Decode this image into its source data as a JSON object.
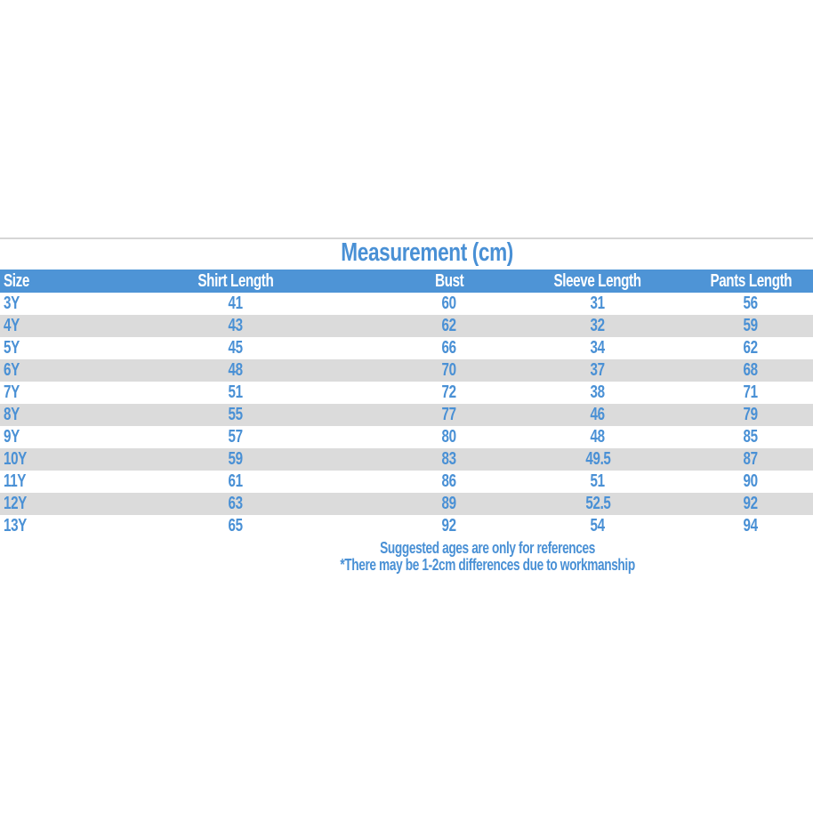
{
  "colors": {
    "header_bg": "#4e94d6",
    "accent_text": "#4990d5",
    "alt_row_bg": "#dbdbdb",
    "divider": "#d6d6d6",
    "header_text": "#ffffff"
  },
  "chart_data": {
    "type": "table",
    "title": "Measurement (cm)",
    "columns": [
      "Size",
      "Shirt Length",
      "Bust",
      "Sleeve Length",
      "Pants Length"
    ],
    "rows": [
      {
        "size": "3Y",
        "shirt_length": "41",
        "bust": "60",
        "sleeve_length": "31",
        "pants_length": "56"
      },
      {
        "size": "4Y",
        "shirt_length": "43",
        "bust": "62",
        "sleeve_length": "32",
        "pants_length": "59"
      },
      {
        "size": "5Y",
        "shirt_length": "45",
        "bust": "66",
        "sleeve_length": "34",
        "pants_length": "62"
      },
      {
        "size": "6Y",
        "shirt_length": "48",
        "bust": "70",
        "sleeve_length": "37",
        "pants_length": "68"
      },
      {
        "size": "7Y",
        "shirt_length": "51",
        "bust": "72",
        "sleeve_length": "38",
        "pants_length": "71"
      },
      {
        "size": "8Y",
        "shirt_length": "55",
        "bust": "77",
        "sleeve_length": "46",
        "pants_length": "79"
      },
      {
        "size": "9Y",
        "shirt_length": "57",
        "bust": "80",
        "sleeve_length": "48",
        "pants_length": "85"
      },
      {
        "size": "10Y",
        "shirt_length": "59",
        "bust": "83",
        "sleeve_length": "49.5",
        "pants_length": "87"
      },
      {
        "size": "11Y",
        "shirt_length": "61",
        "bust": "86",
        "sleeve_length": "51",
        "pants_length": "90"
      },
      {
        "size": "12Y",
        "shirt_length": "63",
        "bust": "89",
        "sleeve_length": "52.5",
        "pants_length": "92"
      },
      {
        "size": "13Y",
        "shirt_length": "65",
        "bust": "92",
        "sleeve_length": "54",
        "pants_length": "94"
      }
    ],
    "notes": [
      "Suggested ages are only for references",
      "*There may be 1-2cm differences due to workmanship"
    ]
  }
}
